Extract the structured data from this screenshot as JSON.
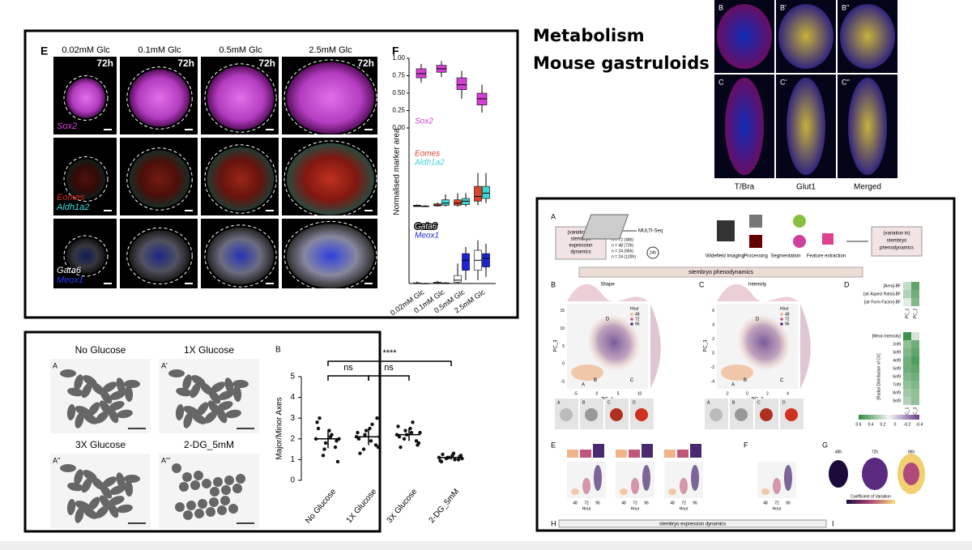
{
  "heading": {
    "line1": "Metabolism",
    "line2": "Mouse gastruloids"
  },
  "panel_e": {
    "label": "E",
    "columns": [
      "0.02mM Glc",
      "0.1mM Glc",
      "0.5mM Glc",
      "2.5mM Glc"
    ],
    "time": "72h",
    "rows": [
      [
        "Sox2"
      ],
      [
        "Eomes",
        "Aldh1a2"
      ],
      [
        "Gata6",
        "Meox1"
      ]
    ]
  },
  "panel_f": {
    "label": "F",
    "y_label": "Normalised marker area",
    "ylim": [
      0,
      1
    ],
    "yticks": [
      {
        "value": 0,
        "label": "0.00"
      },
      {
        "value": 0.25,
        "label": "0.25"
      },
      {
        "value": 0.5,
        "label": "0.50"
      },
      {
        "value": 0.75,
        "label": "0.75"
      },
      {
        "value": 1,
        "label": "1.00"
      }
    ],
    "categories": [
      "0.02mM Glc",
      "0.1mM Glc",
      "0.5mM Glc",
      "2.5mM Glc"
    ],
    "subplots": [
      {
        "series": [
          {
            "name": "Sox2",
            "color": "#d63fd6",
            "boxes": [
              [
                0.65,
                0.72,
                0.78,
                0.85,
                0.92
              ],
              [
                0.73,
                0.8,
                0.85,
                0.9,
                0.96
              ],
              [
                0.42,
                0.55,
                0.62,
                0.72,
                0.82
              ],
              [
                0.22,
                0.33,
                0.42,
                0.5,
                0.62
              ]
            ]
          }
        ]
      },
      {
        "series": [
          {
            "name": "Eomes",
            "color": "#d9442e",
            "boxes": [
              [
                0,
                0,
                0.01,
                0.02,
                0.03
              ],
              [
                0,
                0.01,
                0.02,
                0.04,
                0.06
              ],
              [
                0,
                0.02,
                0.05,
                0.1,
                0.2
              ],
              [
                0.02,
                0.08,
                0.15,
                0.3,
                0.5
              ]
            ]
          },
          {
            "name": "Aldh1a2",
            "color": "#3fd3d3",
            "boxes": [
              [
                0,
                0,
                0,
                0.01,
                0.02
              ],
              [
                0,
                0.02,
                0.05,
                0.1,
                0.18
              ],
              [
                0,
                0.03,
                0.08,
                0.12,
                0.2
              ],
              [
                0.05,
                0.12,
                0.2,
                0.3,
                0.5
              ]
            ]
          }
        ]
      },
      {
        "series": [
          {
            "name": "Gata6",
            "color": "#ffffff",
            "boxes": [
              [
                0,
                0,
                0,
                0.01,
                0.03
              ],
              [
                0,
                0,
                0.01,
                0.02,
                0.04
              ],
              [
                0,
                0.02,
                0.05,
                0.12,
                0.3
              ],
              [
                0.05,
                0.2,
                0.35,
                0.5,
                0.65
              ]
            ]
          },
          {
            "name": "Meox1",
            "color": "#1a24d6",
            "boxes": [
              [
                0,
                0,
                0,
                0,
                0.01
              ],
              [
                0,
                0,
                0,
                0.01,
                0.02
              ],
              [
                0.05,
                0.2,
                0.35,
                0.45,
                0.55
              ],
              [
                0.1,
                0.25,
                0.38,
                0.45,
                0.6
              ]
            ]
          }
        ]
      }
    ]
  },
  "glucose": {
    "image_labels": [
      "A",
      "A'",
      "A''",
      "A'''"
    ],
    "conditions": [
      "No  Glucose",
      "1X Glucose",
      "3X Glucose",
      "2-DG_5mM"
    ],
    "chart": {
      "label": "B",
      "y_label": "Major/Minor Axes",
      "ylim": [
        0,
        5
      ],
      "yticks": [
        0,
        1,
        2,
        3,
        4,
        5
      ],
      "categories": [
        "No Glucose",
        "1X Glucose",
        "3X Glucose",
        "2-DG_5mM"
      ],
      "points": [
        [
          2.0,
          1.6,
          2.4,
          1.2,
          2.8,
          1.9,
          2.1,
          1.5,
          2.5,
          0.9,
          2.2,
          1.8,
          3.0,
          2.0
        ],
        [
          2.1,
          1.7,
          2.5,
          1.5,
          2.3,
          3.0,
          1.9,
          2.2,
          2.0,
          1.6,
          2.7,
          2.4,
          1.3,
          2.1
        ],
        [
          2.2,
          1.9,
          2.5,
          2.0,
          2.6,
          1.7,
          2.3,
          2.4,
          2.1,
          1.8,
          2.8,
          2.2,
          1.6,
          2.3
        ],
        [
          1.1,
          1.0,
          1.2,
          1.05,
          0.95,
          1.15,
          1.3,
          1.1,
          0.9,
          1.2,
          1.0,
          1.1,
          1.25,
          1.05
        ]
      ],
      "means": [
        2.0,
        2.1,
        2.2,
        1.1
      ],
      "sd": [
        0.45,
        0.4,
        0.3,
        0.1
      ],
      "significance": [
        "ns",
        "ns",
        "****"
      ]
    }
  },
  "gastruloid": {
    "labels": [
      "B",
      "B'",
      "B''",
      "C",
      "C'",
      "C''"
    ],
    "stains": [
      "T/Bra",
      "Glut1",
      "Merged"
    ]
  },
  "stembryo": {
    "label_a": "A",
    "left_box": [
      "(variation in)",
      "stembryo",
      "expression",
      "dynamics"
    ],
    "right_box": [
      "(variation in)",
      "stembryo",
      "phenodynamics"
    ],
    "multiseq": "MULTI-Seq",
    "counts": [
      "n = 72 (48h)",
      "n = 48 (72h)",
      "n = 24 (96h)",
      "n = 24 (120h)"
    ],
    "interval": "24h",
    "steps": [
      "Widefield Imaging",
      "Processing",
      "Segmentation",
      "Feature extraction"
    ],
    "band": "stembryo phenodynamics",
    "label_b": "B",
    "label_c": "C",
    "label_d": "D",
    "shape": "Shape",
    "intensity": "Intensity",
    "b_axes": {
      "x": "PC_1",
      "y": "PC_3",
      "xticks": [
        -5,
        0,
        5,
        10
      ],
      "yticks": [
        -5,
        0,
        5,
        10,
        15
      ],
      "xlim": [
        -7,
        12
      ],
      "ylim": [
        -7,
        17
      ]
    },
    "c_axes": {
      "x": "PC_2",
      "y": "PC_3",
      "xticks": [
        -2,
        0,
        2,
        4
      ],
      "yticks": [
        -4,
        -2,
        0,
        2,
        4,
        6
      ],
      "xlim": [
        -3,
        5
      ],
      "ylim": [
        -5,
        7
      ]
    },
    "legend_title": "Hour",
    "hours": [
      "48",
      "72",
      "96"
    ],
    "hour_colors": [
      "#f0b38a",
      "#c0567a",
      "#4a2a6e"
    ],
    "cluster_labels": [
      "A",
      "B",
      "C",
      "D"
    ],
    "heat_top": {
      "rows": [
        "[Area]-BF",
        "[str Aspect Ratio]-BF",
        "[str Form Factor]-BF"
      ],
      "cols": [
        "PC_1",
        "PC_2"
      ],
      "values": [
        [
          0.15,
          0.45
        ],
        [
          0.2,
          0.4
        ],
        [
          0.05,
          0.35
        ]
      ]
    },
    "heat_bottom": {
      "rows": [
        "[Mean Intensity]",
        "2of9",
        "3of9",
        "4of9",
        "5of9",
        "6of9",
        "7of9",
        "8of9",
        "9of9"
      ],
      "cols": [
        "PC_1",
        "PC_3"
      ],
      "group": "[Radial Distribution of CV]",
      "values": [
        [
          0.55,
          0.1
        ],
        [
          0.3,
          0.4
        ],
        [
          0.35,
          0.45
        ],
        [
          0.4,
          0.5
        ],
        [
          0.4,
          0.45
        ],
        [
          0.35,
          0.4
        ],
        [
          0.3,
          0.35
        ],
        [
          0.25,
          0.3
        ],
        [
          0.2,
          0.3
        ]
      ]
    },
    "colorbar_lim": [
      0.6,
      -0.4
    ],
    "colorbar_ticks": [
      0.6,
      0.4,
      0.2,
      0,
      -0.2,
      -0.4
    ],
    "label_e": "E",
    "label_f": "F",
    "label_g": "G",
    "hour_axis": "Hour",
    "g_times": [
      "48h",
      "72h",
      "96h"
    ],
    "g_scale": "Coefficient of Variation",
    "label_h": "H",
    "band_h": "stembryo expression dynamics",
    "label_i": "I"
  }
}
